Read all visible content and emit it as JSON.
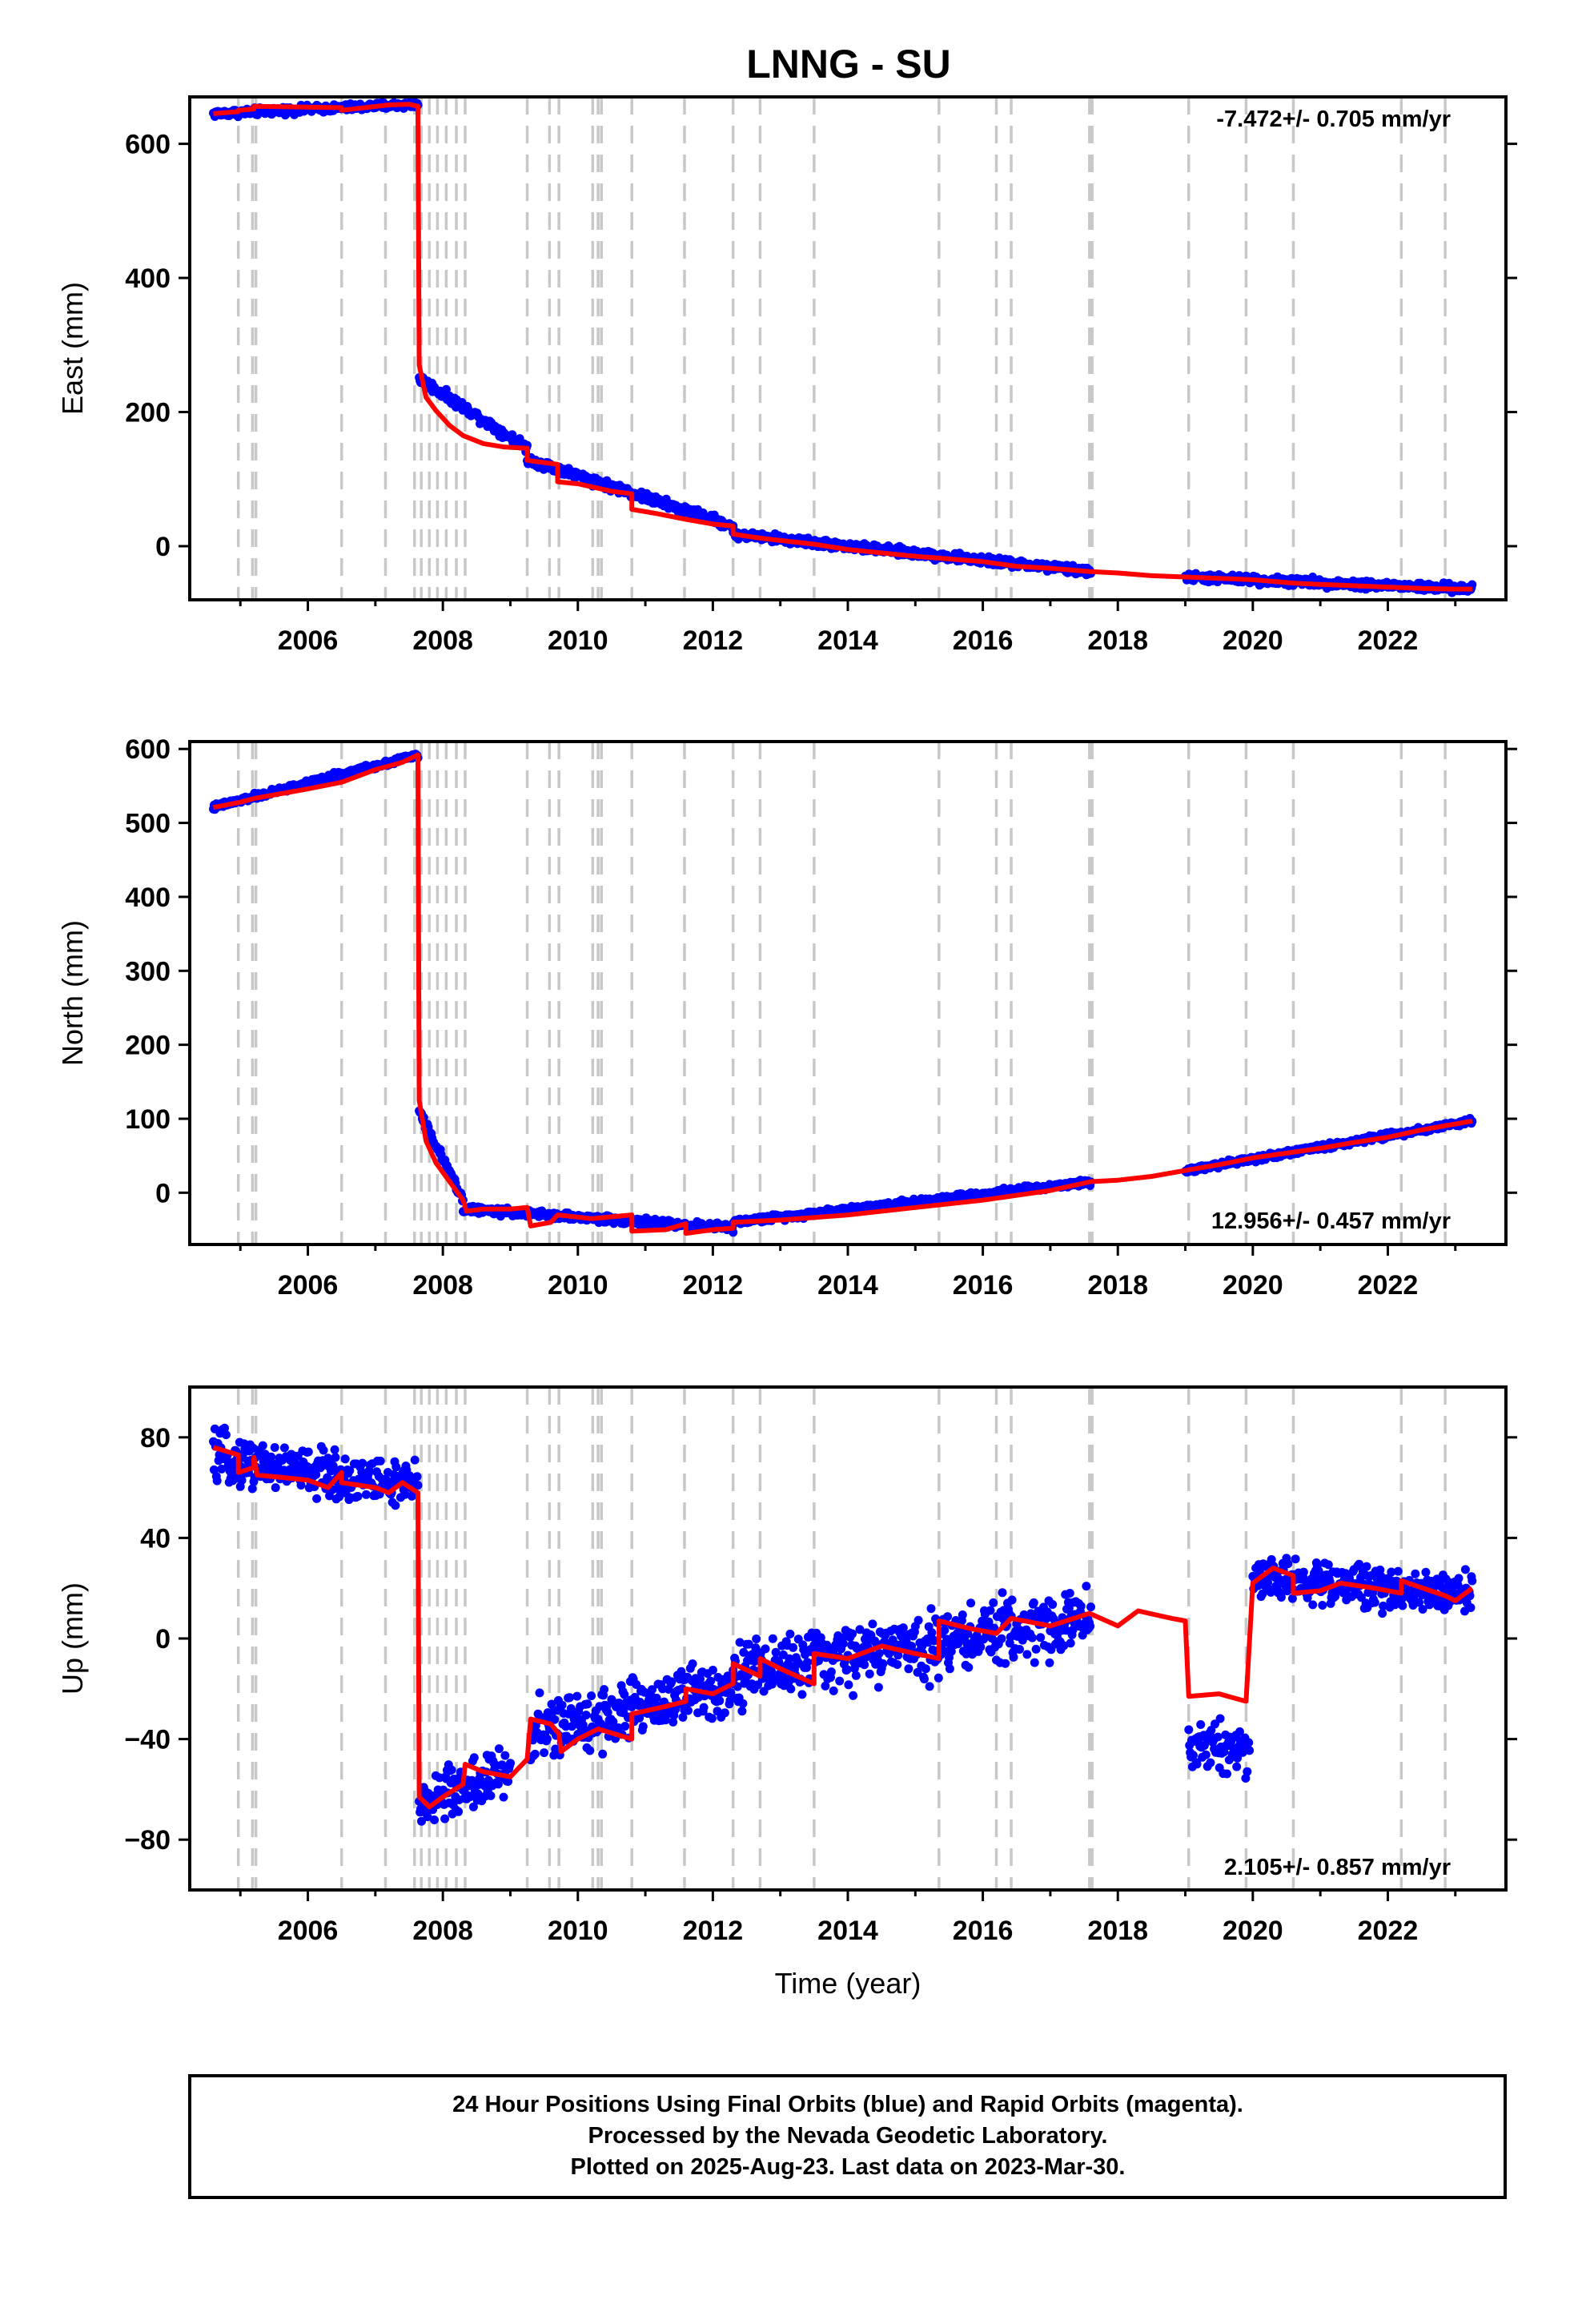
{
  "title": "LNNG - SU",
  "colors": {
    "final_orbits": "#0000ff",
    "model": "#ff0000",
    "offset_lines": "#c8c8c8",
    "frame": "#000000"
  },
  "chart_data": [
    {
      "type": "scatter",
      "panel": "east",
      "ylabel": "East (mm)",
      "xlabel": "",
      "xlim": [
        2004.25,
        2023.75
      ],
      "ylim": [
        -80,
        670
      ],
      "xticks": [
        2006,
        2008,
        2010,
        2012,
        2014,
        2016,
        2018,
        2020,
        2022
      ],
      "xtick_labels": [
        "2006",
        "2008",
        "2010",
        "2012",
        "2014",
        "2016",
        "2018",
        "2020",
        "2022"
      ],
      "yticks": [
        0,
        200,
        400,
        600
      ],
      "ytick_labels": [
        "0",
        "200",
        "400",
        "600"
      ],
      "rate_label": "-7.472+/- 0.705 mm/yr",
      "rate_position": "top-right",
      "model_line": [
        [
          2004.6,
          645
        ],
        [
          2004.97,
          648
        ],
        [
          2004.97,
          650
        ],
        [
          2005.2,
          652
        ],
        [
          2005.2,
          656
        ],
        [
          2006.5,
          654
        ],
        [
          2006.5,
          650
        ],
        [
          2007.2,
          658
        ],
        [
          2007.5,
          659
        ],
        [
          2007.63,
          656
        ],
        [
          2007.65,
          270
        ],
        [
          2007.75,
          222
        ],
        [
          2007.9,
          202
        ],
        [
          2008.1,
          180
        ],
        [
          2008.3,
          165
        ],
        [
          2008.6,
          153
        ],
        [
          2008.9,
          148
        ],
        [
          2009.25,
          146
        ],
        [
          2009.25,
          128
        ],
        [
          2009.7,
          122
        ],
        [
          2009.7,
          96
        ],
        [
          2010.0,
          93
        ],
        [
          2010.5,
          82
        ],
        [
          2010.8,
          78
        ],
        [
          2010.8,
          55
        ],
        [
          2011.2,
          48
        ],
        [
          2011.6,
          40
        ],
        [
          2012.0,
          33
        ],
        [
          2012.3,
          30
        ],
        [
          2012.3,
          18
        ],
        [
          2012.7,
          12
        ],
        [
          2013.5,
          3
        ],
        [
          2014.0,
          -5
        ],
        [
          2015.0,
          -15
        ],
        [
          2016.0,
          -23
        ],
        [
          2016.5,
          -30
        ],
        [
          2017.0,
          -33
        ],
        [
          2017.6,
          -38
        ],
        [
          2018.0,
          -40
        ],
        [
          2018.5,
          -44
        ],
        [
          2019.0,
          -46
        ],
        [
          2019.5,
          -48
        ],
        [
          2020.0,
          -50
        ],
        [
          2020.6,
          -55
        ],
        [
          2021.0,
          -57
        ],
        [
          2021.5,
          -59
        ],
        [
          2022.0,
          -61
        ],
        [
          2022.5,
          -63
        ],
        [
          2023.0,
          -64
        ],
        [
          2023.25,
          -64
        ]
      ],
      "observations": [
        {
          "start": 2004.6,
          "end": 2007.63,
          "from": 645,
          "to": 659,
          "scatter": 8
        },
        {
          "start": 2007.65,
          "end": 2009.25,
          "from": 250,
          "to": 146,
          "scatter": 10
        },
        {
          "start": 2009.25,
          "end": 2012.3,
          "from": 130,
          "to": 30,
          "scatter": 10
        },
        {
          "start": 2012.3,
          "end": 2017.6,
          "from": 18,
          "to": -38,
          "scatter": 9
        },
        {
          "start": 2019.0,
          "end": 2023.25,
          "from": -46,
          "to": -64,
          "scatter": 9
        }
      ],
      "offset_epochs": [
        2004.97,
        2005.18,
        2005.23,
        2006.5,
        2007.15,
        2007.58,
        2007.68,
        2007.8,
        2007.92,
        2008.05,
        2008.2,
        2008.33,
        2009.25,
        2009.58,
        2009.72,
        2010.22,
        2010.3,
        2010.35,
        2010.8,
        2011.58,
        2012.3,
        2012.7,
        2013.5,
        2015.35,
        2016.2,
        2016.42,
        2017.58,
        2017.62,
        2019.05,
        2019.9,
        2020.6,
        2022.2,
        2022.85
      ]
    },
    {
      "type": "scatter",
      "panel": "north",
      "ylabel": "North (mm)",
      "xlabel": "",
      "xlim": [
        2004.25,
        2023.75
      ],
      "ylim": [
        -70,
        610
      ],
      "xticks": [
        2006,
        2008,
        2010,
        2012,
        2014,
        2016,
        2018,
        2020,
        2022
      ],
      "xtick_labels": [
        "2006",
        "2008",
        "2010",
        "2012",
        "2014",
        "2016",
        "2018",
        "2020",
        "2022"
      ],
      "yticks": [
        0,
        100,
        200,
        300,
        400,
        500,
        600
      ],
      "ytick_labels": [
        "0",
        "100",
        "200",
        "300",
        "400",
        "500",
        "600"
      ],
      "rate_label": "12.956+/- 0.457 mm/yr",
      "rate_position": "bottom-right",
      "model_line": [
        [
          2004.6,
          521
        ],
        [
          2005.0,
          528
        ],
        [
          2005.2,
          533
        ],
        [
          2006.0,
          546
        ],
        [
          2006.5,
          555
        ],
        [
          2007.0,
          572
        ],
        [
          2007.4,
          582
        ],
        [
          2007.63,
          592
        ],
        [
          2007.65,
          125
        ],
        [
          2007.75,
          70
        ],
        [
          2007.9,
          40
        ],
        [
          2008.1,
          15
        ],
        [
          2008.3,
          -10
        ],
        [
          2008.35,
          -25
        ],
        [
          2008.6,
          -22
        ],
        [
          2009.0,
          -22
        ],
        [
          2009.25,
          -20
        ],
        [
          2009.3,
          -45
        ],
        [
          2009.6,
          -40
        ],
        [
          2009.7,
          -30
        ],
        [
          2010.2,
          -35
        ],
        [
          2010.8,
          -30
        ],
        [
          2010.8,
          -52
        ],
        [
          2011.3,
          -50
        ],
        [
          2011.6,
          -42
        ],
        [
          2011.6,
          -55
        ],
        [
          2012.0,
          -50
        ],
        [
          2012.3,
          -48
        ],
        [
          2012.3,
          -40
        ],
        [
          2013.0,
          -37
        ],
        [
          2014.0,
          -30
        ],
        [
          2015.0,
          -20
        ],
        [
          2016.0,
          -10
        ],
        [
          2017.0,
          3
        ],
        [
          2017.6,
          15
        ],
        [
          2018.0,
          17
        ],
        [
          2018.5,
          22
        ],
        [
          2019.0,
          30
        ],
        [
          2019.5,
          38
        ],
        [
          2020.0,
          47
        ],
        [
          2021.0,
          60
        ],
        [
          2021.5,
          68
        ],
        [
          2022.0,
          75
        ],
        [
          2022.5,
          85
        ],
        [
          2023.0,
          93
        ],
        [
          2023.25,
          97
        ]
      ],
      "observations": [
        {
          "start": 2004.6,
          "end": 2007.63,
          "from": 521,
          "to": 592,
          "scatter": 6
        },
        {
          "start": 2007.65,
          "end": 2008.3,
          "from": 110,
          "to": -10,
          "scatter": 8
        },
        {
          "start": 2008.3,
          "end": 2012.3,
          "from": -22,
          "to": -48,
          "scatter": 7
        },
        {
          "start": 2012.3,
          "end": 2017.6,
          "from": -40,
          "to": 15,
          "scatter": 6
        },
        {
          "start": 2019.0,
          "end": 2023.25,
          "from": 30,
          "to": 97,
          "scatter": 6
        }
      ],
      "offset_epochs": [
        2004.97,
        2005.18,
        2005.23,
        2006.5,
        2007.15,
        2007.58,
        2007.68,
        2007.8,
        2007.92,
        2008.05,
        2008.2,
        2008.33,
        2009.25,
        2009.58,
        2009.72,
        2010.22,
        2010.3,
        2010.35,
        2010.8,
        2011.58,
        2012.3,
        2012.7,
        2013.5,
        2015.35,
        2016.2,
        2016.42,
        2017.58,
        2017.62,
        2019.05,
        2019.9,
        2020.6,
        2022.2,
        2022.85
      ]
    },
    {
      "type": "scatter",
      "panel": "up",
      "ylabel": "Up (mm)",
      "xlabel": "Time (year)",
      "xlim": [
        2004.25,
        2023.75
      ],
      "ylim": [
        -100,
        100
      ],
      "xticks": [
        2006,
        2008,
        2010,
        2012,
        2014,
        2016,
        2018,
        2020,
        2022
      ],
      "xtick_labels": [
        "2006",
        "2008",
        "2010",
        "2012",
        "2014",
        "2016",
        "2018",
        "2020",
        "2022"
      ],
      "yticks": [
        -80,
        -40,
        0,
        40,
        80
      ],
      "ytick_labels": [
        "−80",
        "−40",
        "0",
        "40",
        "80"
      ],
      "rate_label": "2.105+/- 0.857 mm/yr",
      "rate_position": "bottom-right",
      "model_line": [
        [
          2004.6,
          76
        ],
        [
          2004.97,
          73
        ],
        [
          2004.97,
          66
        ],
        [
          2005.2,
          68
        ],
        [
          2005.2,
          72
        ],
        [
          2005.25,
          65
        ],
        [
          2006.0,
          63
        ],
        [
          2006.3,
          60
        ],
        [
          2006.5,
          66
        ],
        [
          2006.5,
          62
        ],
        [
          2007.0,
          60
        ],
        [
          2007.2,
          58
        ],
        [
          2007.4,
          62
        ],
        [
          2007.63,
          58
        ],
        [
          2007.65,
          -63
        ],
        [
          2007.8,
          -67
        ],
        [
          2008.0,
          -63
        ],
        [
          2008.3,
          -58
        ],
        [
          2008.33,
          -50
        ],
        [
          2008.6,
          -53
        ],
        [
          2009.0,
          -55
        ],
        [
          2009.25,
          -48
        ],
        [
          2009.3,
          -32
        ],
        [
          2009.6,
          -34
        ],
        [
          2009.72,
          -38
        ],
        [
          2009.75,
          -45
        ],
        [
          2010.0,
          -40
        ],
        [
          2010.3,
          -36
        ],
        [
          2010.8,
          -40
        ],
        [
          2010.8,
          -30
        ],
        [
          2011.3,
          -27
        ],
        [
          2011.6,
          -25
        ],
        [
          2011.6,
          -20
        ],
        [
          2012.0,
          -22
        ],
        [
          2012.3,
          -18
        ],
        [
          2012.3,
          -10
        ],
        [
          2012.7,
          -15
        ],
        [
          2012.7,
          -8
        ],
        [
          2013.0,
          -12
        ],
        [
          2013.5,
          -18
        ],
        [
          2013.5,
          -6
        ],
        [
          2014.0,
          -8
        ],
        [
          2014.5,
          -3
        ],
        [
          2015.0,
          -6
        ],
        [
          2015.35,
          -8
        ],
        [
          2015.35,
          7
        ],
        [
          2015.8,
          4
        ],
        [
          2016.2,
          2
        ],
        [
          2016.42,
          8
        ],
        [
          2017.0,
          5
        ],
        [
          2017.58,
          10
        ],
        [
          2018.0,
          5
        ],
        [
          2018.3,
          11
        ],
        [
          2018.8,
          8
        ],
        [
          2019.0,
          7
        ],
        [
          2019.05,
          -23
        ],
        [
          2019.5,
          -22
        ],
        [
          2019.9,
          -25
        ],
        [
          2020.0,
          22
        ],
        [
          2020.3,
          28
        ],
        [
          2020.6,
          25
        ],
        [
          2020.6,
          18
        ],
        [
          2021.0,
          19
        ],
        [
          2021.3,
          22
        ],
        [
          2021.8,
          20
        ],
        [
          2022.2,
          18
        ],
        [
          2022.2,
          23
        ],
        [
          2022.85,
          17
        ],
        [
          2023.0,
          15
        ],
        [
          2023.25,
          20
        ]
      ],
      "observations": [
        {
          "start": 2004.6,
          "end": 2007.63,
          "from": 72,
          "to": 60,
          "scatter": 14
        },
        {
          "start": 2007.65,
          "end": 2009.0,
          "from": -65,
          "to": -53,
          "scatter": 16
        },
        {
          "start": 2009.3,
          "end": 2012.3,
          "from": -38,
          "to": -18,
          "scatter": 18
        },
        {
          "start": 2012.3,
          "end": 2017.6,
          "from": -14,
          "to": 8,
          "scatter": 18
        },
        {
          "start": 2019.05,
          "end": 2019.95,
          "from": -42,
          "to": -44,
          "scatter": 16
        },
        {
          "start": 2020.0,
          "end": 2023.25,
          "from": 24,
          "to": 18,
          "scatter": 12
        }
      ],
      "offset_epochs": [
        2004.97,
        2005.18,
        2005.23,
        2006.5,
        2007.15,
        2007.58,
        2007.68,
        2007.8,
        2007.92,
        2008.05,
        2008.2,
        2008.33,
        2009.25,
        2009.58,
        2009.72,
        2010.22,
        2010.3,
        2010.35,
        2010.8,
        2011.58,
        2012.3,
        2012.7,
        2013.5,
        2015.35,
        2016.2,
        2016.42,
        2017.58,
        2017.62,
        2019.05,
        2019.9,
        2020.6,
        2022.2,
        2022.85
      ]
    }
  ],
  "footer": {
    "line1": "24 Hour Positions Using Final Orbits (blue) and Rapid Orbits (magenta).",
    "line2": "Processed by the Nevada Geodetic Laboratory.",
    "line3": "Plotted on 2025-Aug-23. Last data on 2023-Mar-30."
  }
}
